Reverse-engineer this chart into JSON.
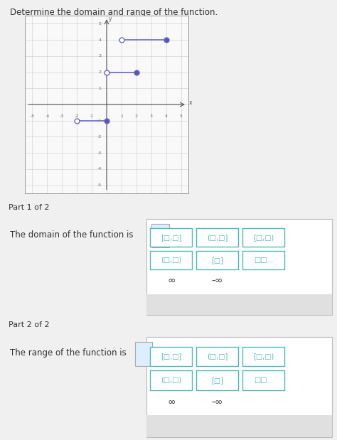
{
  "title": "Determine the domain and range of the function.",
  "segments": [
    {
      "x_open": 1,
      "x_closed": 4,
      "y": 4
    },
    {
      "x_open": 0,
      "x_closed": 2,
      "y": 2
    },
    {
      "x_open": -2,
      "x_closed": 0,
      "y": -1
    }
  ],
  "line_color": "#6666cc",
  "open_circle_face": "white",
  "closed_circle_face": "#5555bb",
  "circle_edge_color": "#6666cc",
  "marker_size": 5,
  "xlim": [
    -5.5,
    5.5
  ],
  "ylim": [
    -5.5,
    5.5
  ],
  "xticks": [
    -5,
    -4,
    -3,
    -2,
    -1,
    1,
    2,
    3,
    4,
    5
  ],
  "yticks": [
    -5,
    -4,
    -3,
    -2,
    -1,
    1,
    2,
    3,
    4,
    5
  ],
  "grid_color": "#cccccc",
  "axis_color": "#555555",
  "plot_bg_color": "#f9f9f9",
  "outer_bg": "#f0f0f0",
  "white_bg": "#ffffff",
  "part_header_bg": "#d8d8d8",
  "part1_label": "Part 1 of 2",
  "part2_label": "Part 2 of 2",
  "domain_text": "The domain of the function is",
  "range_text": "The range of the function is",
  "button_items_row1": [
    "[□,□]",
    "(□,□]",
    "[□,□)"
  ],
  "button_items_row2": [
    "(□,□)",
    "[□]",
    "□□..."
  ],
  "button_items_row3": [
    "∞",
    "-∞"
  ],
  "button_bottom": [
    "×",
    "↺"
  ],
  "teal_color": "#4db8b8",
  "text_color": "#333333",
  "label_color": "#666666",
  "x_label": "x",
  "y_label": "y",
  "fig_width": 4.74,
  "fig_height": 6.19,
  "dpi": 100
}
